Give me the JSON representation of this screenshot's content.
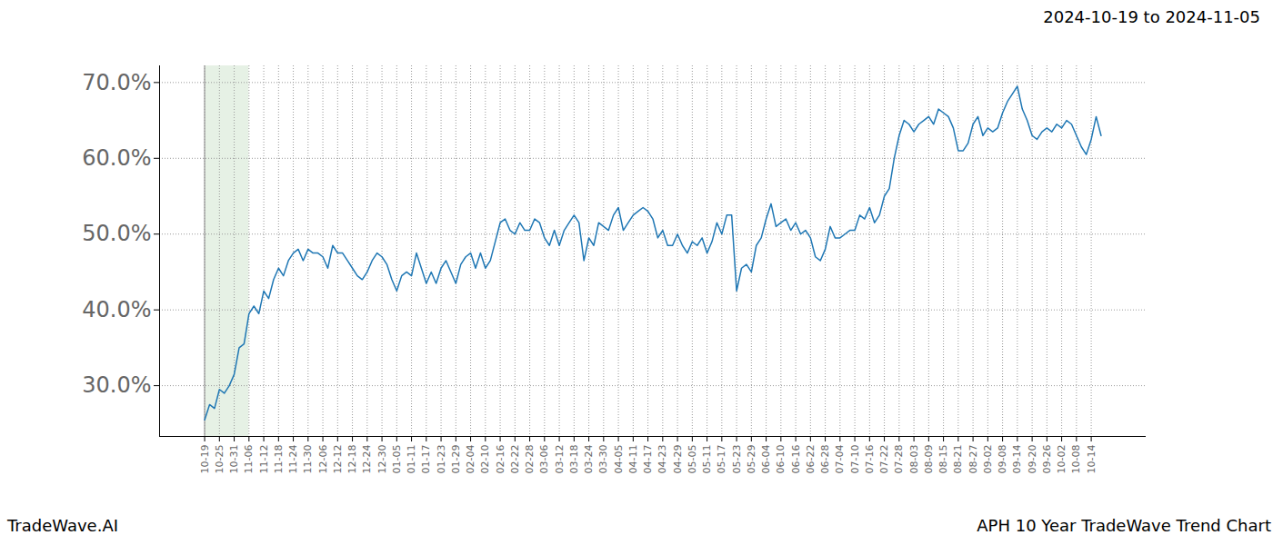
{
  "chart_data": {
    "type": "line",
    "title": "APH 10 Year TradeWave Trend Chart",
    "subtitle": "2024-10-19 to 2024-11-05",
    "caption": "TradeWave.AI",
    "color": "#1f77b4",
    "grid": true,
    "highlight": [
      "10-19",
      "11-06"
    ],
    "ylim": [
      23.3,
      72.2
    ],
    "yticks": [
      {
        "value": 30,
        "label": "30.0%"
      },
      {
        "value": 40,
        "label": "40.0%"
      },
      {
        "value": 50,
        "label": "50.0%"
      },
      {
        "value": 60,
        "label": "60.0%"
      },
      {
        "value": 70,
        "label": "70.0%"
      }
    ],
    "categories": [
      "10-19",
      null,
      null,
      "10-25",
      null,
      null,
      "10-31",
      null,
      null,
      "11-06",
      null,
      null,
      "11-12",
      null,
      null,
      "11-18",
      null,
      null,
      "11-24",
      null,
      null,
      "11-30",
      null,
      null,
      "12-06",
      null,
      null,
      "12-12",
      null,
      null,
      "12-18",
      null,
      null,
      "12-24",
      null,
      null,
      "12-30",
      null,
      null,
      "01-05",
      null,
      null,
      "01-11",
      null,
      null,
      "01-17",
      null,
      null,
      "01-23",
      null,
      null,
      "01-29",
      null,
      null,
      "02-04",
      null,
      null,
      "02-10",
      null,
      null,
      "02-16",
      null,
      null,
      "02-22",
      null,
      null,
      "02-28",
      null,
      null,
      "03-06",
      null,
      null,
      "03-12",
      null,
      null,
      "03-18",
      null,
      null,
      "03-24",
      null,
      null,
      "03-30",
      null,
      null,
      "04-05",
      null,
      null,
      "04-11",
      null,
      null,
      "04-17",
      null,
      null,
      "04-23",
      null,
      null,
      "04-29",
      null,
      null,
      "05-05",
      null,
      null,
      "05-11",
      null,
      null,
      "05-17",
      null,
      null,
      "05-23",
      null,
      null,
      "05-29",
      null,
      null,
      "06-04",
      null,
      null,
      "06-10",
      null,
      null,
      "06-16",
      null,
      null,
      "06-22",
      null,
      null,
      "06-28",
      null,
      null,
      "07-04",
      null,
      null,
      "07-10",
      null,
      null,
      "07-16",
      null,
      null,
      "07-22",
      null,
      null,
      "07-28",
      null,
      null,
      "08-03",
      null,
      null,
      "08-09",
      null,
      null,
      "08-15",
      null,
      null,
      "08-21",
      null,
      null,
      "08-27",
      null,
      null,
      "09-02",
      null,
      null,
      "09-08",
      null,
      null,
      "09-14",
      null,
      null,
      "09-20",
      null,
      null,
      "09-26",
      null,
      null,
      "10-02",
      null,
      null,
      "10-08",
      null,
      null,
      "10-14",
      null,
      null
    ],
    "values": [
      25.5,
      27.5,
      27,
      29.5,
      29,
      30,
      31.5,
      35,
      35.5,
      39.5,
      40.5,
      39.5,
      42.5,
      41.5,
      44,
      45.5,
      44.5,
      46.5,
      47.5,
      48,
      46.5,
      48,
      47.5,
      47.5,
      47,
      45.5,
      48.5,
      47.5,
      47.5,
      46.5,
      45.5,
      44.5,
      44,
      45,
      46.5,
      47.5,
      47,
      46,
      44,
      42.5,
      44.5,
      45,
      44.5,
      47.5,
      45.5,
      43.5,
      45,
      43.5,
      45.5,
      46.5,
      45,
      43.5,
      46,
      47,
      47.5,
      45.5,
      47.5,
      45.5,
      46.5,
      49,
      51.5,
      52,
      50.5,
      50,
      51.5,
      50.5,
      50.5,
      52,
      51.5,
      49.5,
      48.5,
      50.5,
      48.5,
      50.5,
      51.5,
      52.5,
      51.5,
      46.5,
      49.5,
      48.5,
      51.5,
      51,
      50.5,
      52.5,
      53.5,
      50.5,
      51.5,
      52.5,
      53,
      53.5,
      53,
      52,
      49.5,
      50.5,
      48.5,
      48.5,
      50,
      48.5,
      47.5,
      49,
      48.5,
      49.5,
      47.5,
      49,
      51.5,
      50,
      52.5,
      52.5,
      42.5,
      45.5,
      46,
      45,
      48.5,
      49.5,
      52,
      54,
      51,
      51.5,
      52,
      50.5,
      51.5,
      50,
      50.5,
      49.5,
      47,
      46.5,
      48,
      51,
      49.5,
      49.5,
      50,
      50.5,
      50.5,
      52.5,
      52,
      53.5,
      51.5,
      52.5,
      55,
      56,
      60,
      63,
      65,
      64.5,
      63.5,
      64.5,
      65,
      65.5,
      64.5,
      66.5,
      66,
      65.5,
      64,
      61,
      61,
      62,
      64.5,
      65.5,
      63,
      64,
      63.5,
      64,
      66,
      67.5,
      68.5,
      69.5,
      66.5,
      65,
      63,
      62.5,
      63.5,
      64,
      63.5,
      64.5,
      64,
      65,
      64.5,
      63,
      61.5,
      60.5,
      62.5,
      65.5,
      63
    ]
  }
}
